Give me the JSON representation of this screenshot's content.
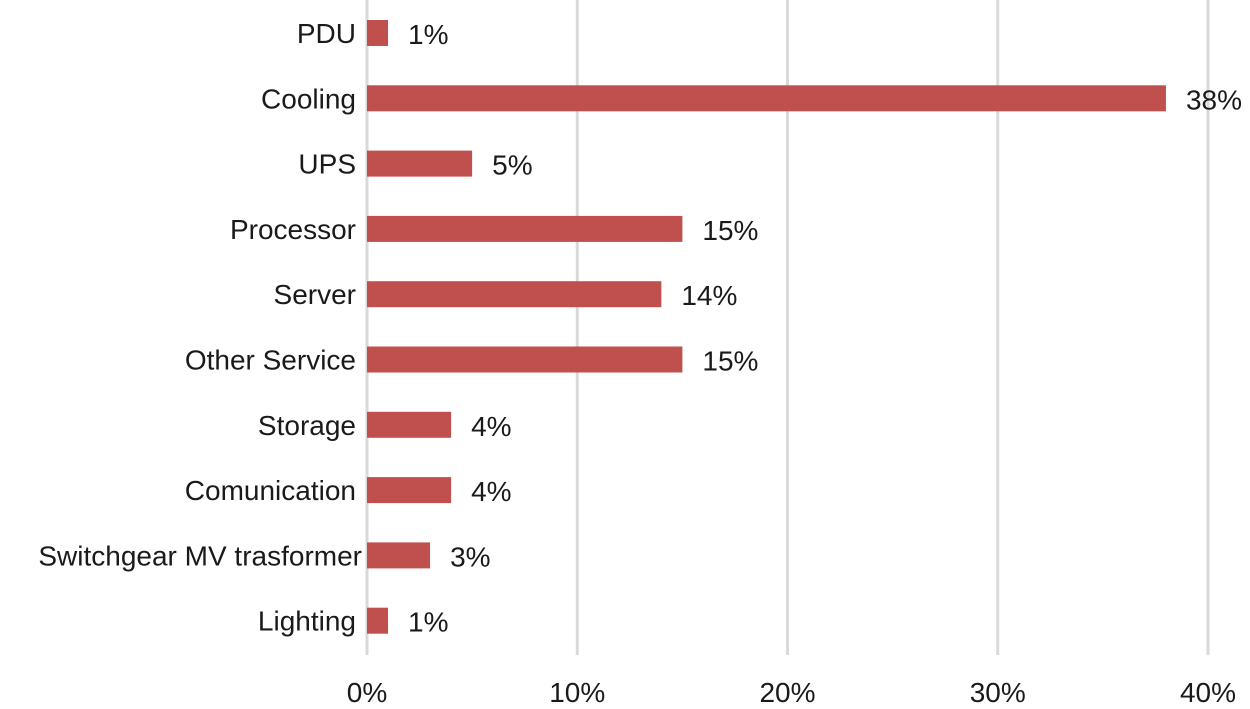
{
  "chart_data": {
    "type": "bar",
    "orientation": "horizontal",
    "title": "",
    "xlabel": "",
    "ylabel": "",
    "categories": [
      "PDU",
      "Cooling",
      "UPS",
      "Processor",
      "Server",
      "Other Service",
      "Storage",
      "Comunication",
      "Switchgear MV trasformer",
      "Lighting"
    ],
    "values": [
      1,
      38,
      5,
      15,
      14,
      15,
      4,
      4,
      3,
      1
    ],
    "value_labels": [
      "1%",
      "38%",
      "5%",
      "15%",
      "14%",
      "15%",
      "4%",
      "4%",
      "3%",
      "1%"
    ],
    "xlim": [
      0,
      40
    ],
    "xticks": [
      0,
      10,
      20,
      30,
      40
    ],
    "xtick_labels": [
      "0%",
      "10%",
      "20%",
      "30%",
      "40%"
    ],
    "grid": "vertical",
    "legend": "none",
    "colors": {
      "bar": "#c0504d",
      "grid": "#d9d9d9",
      "text": "#1a1a1a"
    }
  }
}
